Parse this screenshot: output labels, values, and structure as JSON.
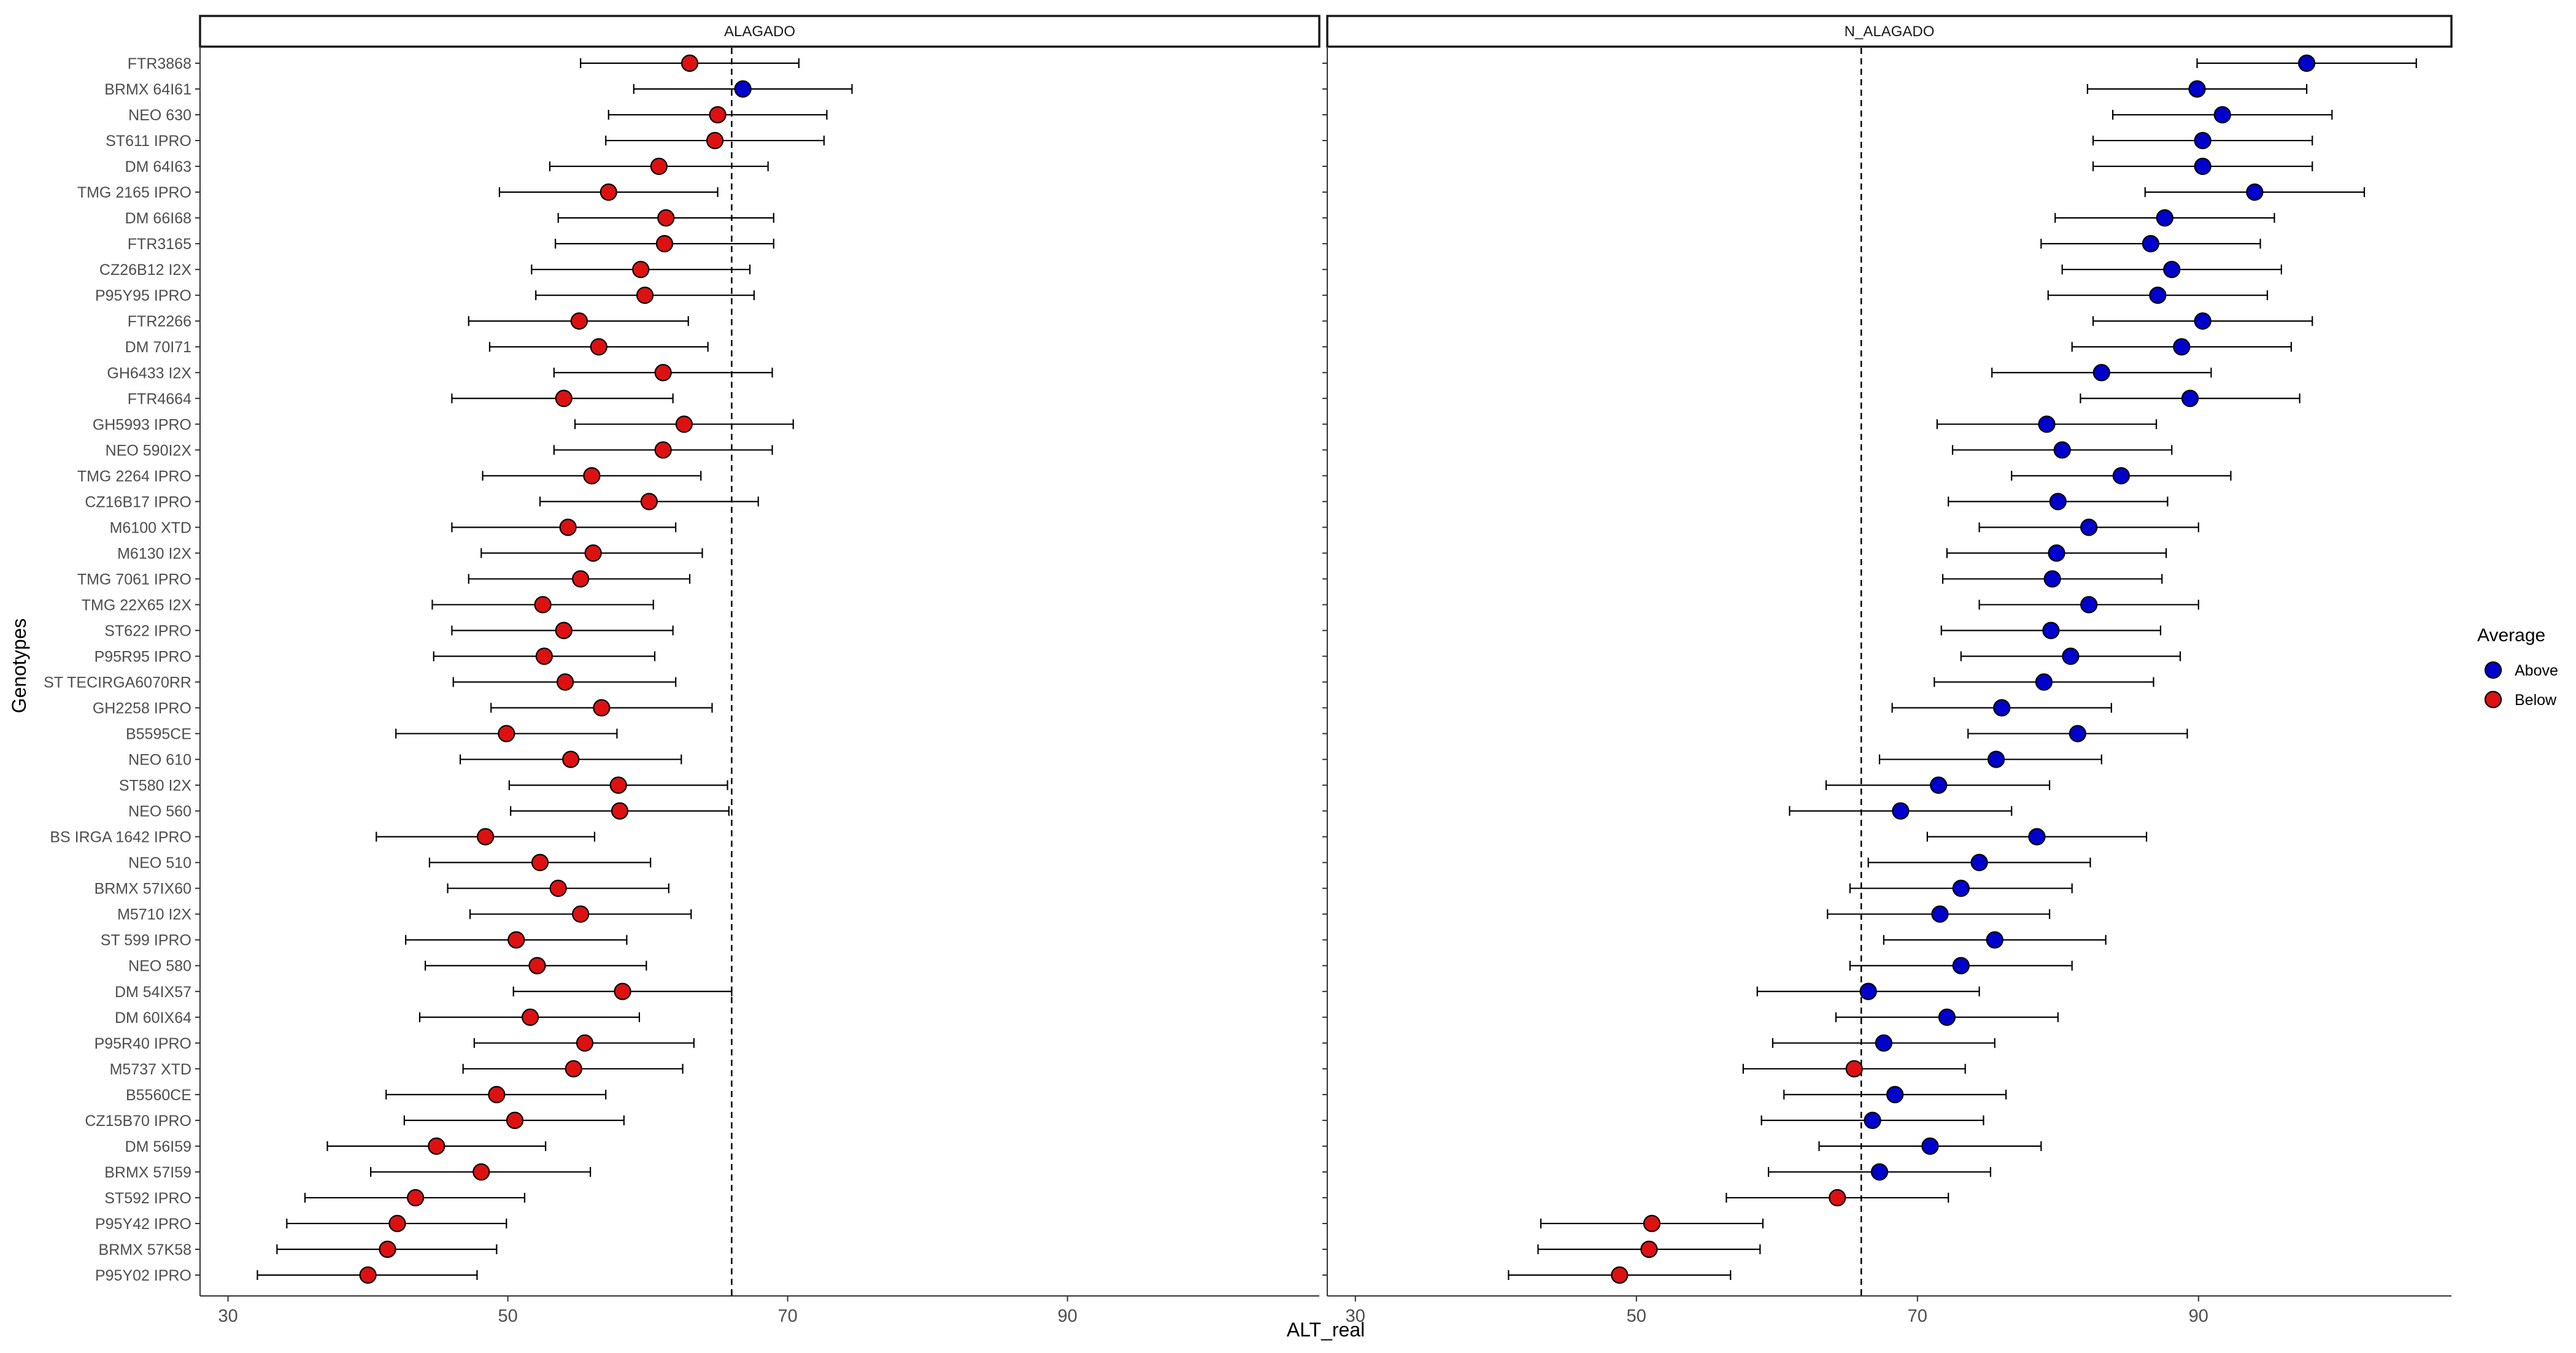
{
  "chart_data": {
    "type": "scatter",
    "subtype": "dot-with-error-bars, faceted",
    "xlabel": "ALT_real",
    "ylabel": "Genotypes",
    "xlim": [
      28,
      108
    ],
    "xticks": [
      30,
      50,
      70,
      90
    ],
    "reference_line": 66,
    "legend": {
      "title": "Average",
      "position": "right",
      "entries": [
        {
          "label": "Above",
          "color": "#0000cc"
        },
        {
          "label": "Below",
          "color": "#dd1111"
        }
      ]
    },
    "genotypes": [
      "FTR3868",
      "BRMX 64I61",
      "NEO 630",
      "ST611 IPRO",
      "DM 64I63",
      "TMG 2165 IPRO",
      "DM 66I68",
      "FTR3165",
      "CZ26B12 I2X",
      "P95Y95 IPRO",
      "FTR2266",
      "DM 70I71",
      "GH6433 I2X",
      "FTR4664",
      "GH5993 IPRO",
      "NEO 590I2X",
      "TMG 2264 IPRO",
      "CZ16B17 IPRO",
      "M6100 XTD",
      "M6130 I2X",
      "TMG 7061 IPRO",
      "TMG 22X65 I2X",
      "ST622 IPRO",
      "P95R95 IPRO",
      "ST TECIRGA6070RR",
      "GH2258 IPRO",
      "B5595CE",
      "NEO 610",
      "ST580 I2X",
      "NEO 560",
      "BS IRGA 1642 IPRO",
      "NEO 510",
      "BRMX 57IX60",
      "M5710 I2X",
      "ST 599 IPRO",
      "NEO 580",
      "DM 54IX57",
      "DM 60IX64",
      "P95R40 IPRO",
      "M5737 XTD",
      "B5560CE",
      "CZ15B70 IPRO",
      "DM 56I59",
      "BRMX 57I59",
      "ST592 IPRO",
      "P95Y42 IPRO",
      "BRMX 57K58",
      "P95Y02 IPRO"
    ],
    "panels": [
      {
        "name": "ALAGADO",
        "mean": [
          63.0,
          66.8,
          65.0,
          64.8,
          60.8,
          57.2,
          61.3,
          61.2,
          59.5,
          59.8,
          55.1,
          56.5,
          61.1,
          54.0,
          62.6,
          61.1,
          56.0,
          60.1,
          54.3,
          56.1,
          55.2,
          52.5,
          54.0,
          52.6,
          54.1,
          56.7,
          49.9,
          54.5,
          57.9,
          58.0,
          48.4,
          52.3,
          53.6,
          55.2,
          50.6,
          52.1,
          58.2,
          51.6,
          55.5,
          54.7,
          49.2,
          50.5,
          44.9,
          48.1,
          43.4,
          42.1,
          41.4,
          40.0
        ],
        "lower": [
          55.2,
          59.0,
          57.2,
          57.0,
          53.0,
          49.4,
          53.6,
          53.4,
          51.7,
          52.0,
          47.2,
          48.7,
          53.3,
          46.0,
          54.8,
          53.3,
          48.2,
          52.3,
          46.0,
          48.1,
          47.2,
          44.6,
          46.0,
          44.7,
          46.1,
          48.8,
          42.0,
          46.6,
          50.1,
          50.2,
          40.6,
          44.4,
          45.7,
          47.3,
          42.7,
          44.1,
          50.4,
          43.7,
          47.6,
          46.8,
          41.3,
          42.6,
          37.1,
          40.2,
          35.5,
          34.2,
          33.5,
          32.1
        ],
        "upper": [
          70.8,
          74.6,
          72.8,
          72.6,
          68.6,
          65.0,
          69.0,
          69.0,
          67.3,
          67.6,
          62.9,
          64.3,
          68.9,
          61.8,
          70.4,
          68.9,
          63.8,
          67.9,
          62.0,
          63.9,
          63.0,
          60.4,
          61.8,
          60.5,
          62.0,
          64.6,
          57.8,
          62.4,
          65.7,
          65.8,
          56.2,
          60.2,
          61.5,
          63.1,
          58.5,
          59.9,
          66.0,
          59.4,
          63.3,
          62.5,
          57.0,
          58.3,
          52.7,
          55.9,
          51.2,
          49.9,
          49.2,
          47.8
        ],
        "average": [
          "Below",
          "Above",
          "Below",
          "Below",
          "Below",
          "Below",
          "Below",
          "Below",
          "Below",
          "Below",
          "Below",
          "Below",
          "Below",
          "Below",
          "Below",
          "Below",
          "Below",
          "Below",
          "Below",
          "Below",
          "Below",
          "Below",
          "Below",
          "Below",
          "Below",
          "Below",
          "Below",
          "Below",
          "Below",
          "Below",
          "Below",
          "Below",
          "Below",
          "Below",
          "Below",
          "Below",
          "Below",
          "Below",
          "Below",
          "Below",
          "Below",
          "Below",
          "Below",
          "Below",
          "Below",
          "Below",
          "Below",
          "Below"
        ]
      },
      {
        "name": "N_ALAGADO",
        "mean": [
          97.7,
          89.9,
          91.7,
          90.3,
          90.3,
          94.0,
          87.6,
          86.6,
          88.1,
          87.1,
          90.3,
          88.8,
          83.1,
          89.4,
          79.2,
          80.3,
          84.5,
          80.0,
          82.2,
          79.9,
          79.6,
          82.2,
          79.5,
          80.9,
          79.0,
          76.0,
          81.4,
          75.6,
          71.5,
          68.8,
          78.5,
          74.4,
          73.1,
          71.6,
          75.5,
          73.1,
          66.5,
          72.1,
          67.6,
          65.5,
          68.4,
          66.8,
          70.9,
          67.3,
          64.3,
          51.1,
          50.9,
          48.8
        ],
        "lower": [
          89.9,
          82.1,
          83.9,
          82.5,
          82.5,
          86.2,
          79.8,
          78.8,
          80.3,
          79.3,
          82.5,
          81.0,
          75.3,
          81.6,
          71.4,
          72.5,
          76.7,
          72.2,
          74.4,
          72.1,
          71.8,
          74.4,
          71.7,
          73.1,
          71.2,
          68.2,
          73.6,
          67.3,
          63.5,
          60.9,
          70.7,
          66.5,
          65.2,
          63.6,
          67.6,
          65.2,
          58.6,
          64.2,
          59.7,
          57.6,
          60.5,
          58.9,
          63.0,
          59.4,
          56.4,
          43.2,
          43.0,
          40.9
        ],
        "upper": [
          105.5,
          97.7,
          99.5,
          98.1,
          98.1,
          101.8,
          95.4,
          94.4,
          95.9,
          94.9,
          98.1,
          96.6,
          90.9,
          97.2,
          87.0,
          88.1,
          92.3,
          87.8,
          90.0,
          87.7,
          87.4,
          90.0,
          87.3,
          88.7,
          86.8,
          83.8,
          89.2,
          83.1,
          79.4,
          76.7,
          86.3,
          82.3,
          81.0,
          79.4,
          83.4,
          81.0,
          74.4,
          80.0,
          75.5,
          73.4,
          76.3,
          74.7,
          78.8,
          75.2,
          72.2,
          59.0,
          58.8,
          56.7
        ],
        "average": [
          "Above",
          "Above",
          "Above",
          "Above",
          "Above",
          "Above",
          "Above",
          "Above",
          "Above",
          "Above",
          "Above",
          "Above",
          "Above",
          "Above",
          "Above",
          "Above",
          "Above",
          "Above",
          "Above",
          "Above",
          "Above",
          "Above",
          "Above",
          "Above",
          "Above",
          "Above",
          "Above",
          "Above",
          "Above",
          "Above",
          "Above",
          "Above",
          "Above",
          "Above",
          "Above",
          "Above",
          "Above",
          "Above",
          "Above",
          "Below",
          "Above",
          "Above",
          "Above",
          "Above",
          "Below",
          "Below",
          "Below",
          "Below"
        ]
      }
    ]
  }
}
